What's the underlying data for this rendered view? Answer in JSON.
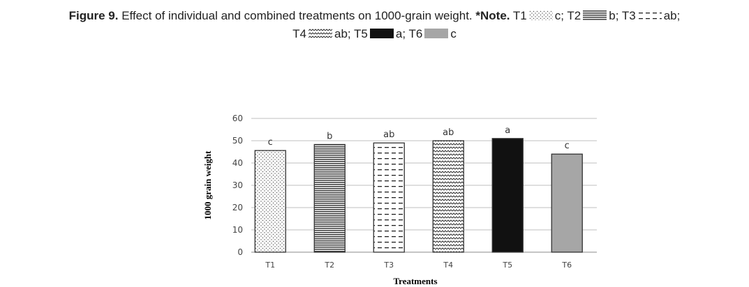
{
  "caption": {
    "label": "Figure 9.",
    "text": " Effect of individual and combined treatments on 1000-grain weight. ",
    "note": "*Note.",
    "legend": [
      {
        "name": "T1",
        "letter": "c;"
      },
      {
        "name": "T2",
        "letter": "b;"
      },
      {
        "name": "T3",
        "letter": "ab;"
      },
      {
        "name": "T4",
        "letter": "ab;"
      },
      {
        "name": "T5",
        "letter": "a;"
      },
      {
        "name": "T6",
        "letter": "c"
      }
    ]
  },
  "chart_data": {
    "type": "bar",
    "title": "",
    "xlabel": "Treatments",
    "ylabel": "1000 grain weight",
    "ylim": [
      0,
      60
    ],
    "yticks": [
      0,
      10,
      20,
      30,
      40,
      50,
      60
    ],
    "grid": true,
    "categories": [
      "T1",
      "T2",
      "T3",
      "T4",
      "T5",
      "T6"
    ],
    "values": [
      45.6,
      48.3,
      49.0,
      50.0,
      51.0,
      44.0
    ],
    "labels": [
      "c",
      "b",
      "ab",
      "ab",
      "a",
      "c"
    ],
    "fills": [
      "dots",
      "hlines",
      "dashes",
      "waves",
      "#111111",
      "#a6a6a6"
    ]
  }
}
